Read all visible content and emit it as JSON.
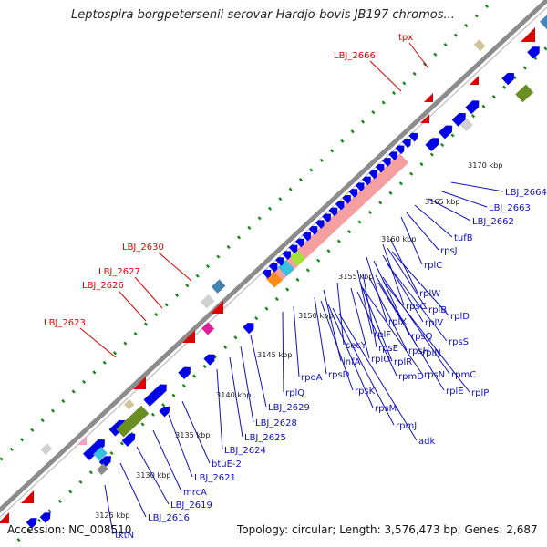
{
  "title": "Leptospira borgpetersenii serovar Hardjo-bovis JB197 chromos...",
  "footer": {
    "accession": "Accession: NC_008510",
    "summary": "Topology: circular; Length: 3,576,473 bp; Genes: 2,687"
  },
  "colors": {
    "backbone": "#8c8c8c",
    "cds": "#0000e6",
    "rna_pink": "#f4a0a0",
    "tick_green": "#1a8a1a",
    "label_red": "#e00000",
    "label_blue": "#1010c0",
    "scale_text": "#222222"
  },
  "scale_labels": [
    {
      "id": "s3125",
      "text": "3125 kbp"
    },
    {
      "id": "s3130",
      "text": "3130 kbp"
    },
    {
      "id": "s3135",
      "text": "3135 kbp"
    },
    {
      "id": "s3140",
      "text": "3140 kbp"
    },
    {
      "id": "s3145",
      "text": "3145 kbp"
    },
    {
      "id": "s3150",
      "text": "3150 kbp"
    },
    {
      "id": "s3155",
      "text": "3155 kbp"
    },
    {
      "id": "s3160",
      "text": "3160 kbp"
    },
    {
      "id": "s3165",
      "text": "3165 kbp"
    },
    {
      "id": "s3170",
      "text": "3170 kbp"
    }
  ],
  "red_labels": [
    {
      "id": "tpx",
      "text": "tpx"
    },
    {
      "id": "lbj2666",
      "text": "LBJ_2666"
    },
    {
      "id": "lbj2630",
      "text": "LBJ_2630"
    },
    {
      "id": "lbj2627",
      "text": "LBJ_2627"
    },
    {
      "id": "lbj2626",
      "text": "LBJ_2626"
    },
    {
      "id": "lbj2623",
      "text": "LBJ_2623"
    }
  ],
  "blue_labels": [
    {
      "id": "lbj2664",
      "text": "LBJ_2664"
    },
    {
      "id": "lbj2663",
      "text": "LBJ_2663"
    },
    {
      "id": "lbj2662",
      "text": "LBJ_2662"
    },
    {
      "id": "tufb",
      "text": "tufB"
    },
    {
      "id": "rpsj",
      "text": "rpsJ"
    },
    {
      "id": "rplc",
      "text": "rplC"
    },
    {
      "id": "rplw",
      "text": "rplW"
    },
    {
      "id": "rpsc",
      "text": "rpsC"
    },
    {
      "id": "rplb",
      "text": "rplB"
    },
    {
      "id": "rpld",
      "text": "rplD"
    },
    {
      "id": "rplx",
      "text": "rplX"
    },
    {
      "id": "rplv",
      "text": "rplV"
    },
    {
      "id": "rpsq",
      "text": "rpsQ"
    },
    {
      "id": "rpss",
      "text": "rpsS"
    },
    {
      "id": "rplf",
      "text": "rplF"
    },
    {
      "id": "rpse",
      "text": "rpsE"
    },
    {
      "id": "rpsh",
      "text": "rpsH"
    },
    {
      "id": "rpln",
      "text": "rplN"
    },
    {
      "id": "secy",
      "text": "secY"
    },
    {
      "id": "rplr",
      "text": "rplR"
    },
    {
      "id": "rplo",
      "text": "rplO"
    },
    {
      "id": "rpmc",
      "text": "rpmC"
    },
    {
      "id": "infa",
      "text": "infA"
    },
    {
      "id": "rpmd",
      "text": "rpmD"
    },
    {
      "id": "rpsn",
      "text": "rpsN"
    },
    {
      "id": "rple",
      "text": "rplE"
    },
    {
      "id": "rplp",
      "text": "rplP"
    },
    {
      "id": "rpoa",
      "text": "rpoA"
    },
    {
      "id": "rpsd",
      "text": "rpsD"
    },
    {
      "id": "rplq",
      "text": "rplQ"
    },
    {
      "id": "rpsk",
      "text": "rpsK"
    },
    {
      "id": "lbj2629",
      "text": "LBJ_2629"
    },
    {
      "id": "rpsm",
      "text": "rpsM"
    },
    {
      "id": "lbj2628",
      "text": "LBJ_2628"
    },
    {
      "id": "rpmj",
      "text": "rpmJ"
    },
    {
      "id": "lbj2625",
      "text": "LBJ_2625"
    },
    {
      "id": "adk",
      "text": "adk"
    },
    {
      "id": "lbj2624",
      "text": "LBJ_2624"
    },
    {
      "id": "btue2",
      "text": "btuE-2"
    },
    {
      "id": "lbj2621",
      "text": "LBJ_2621"
    },
    {
      "id": "mrca",
      "text": "mrcA"
    },
    {
      "id": "lbj2619",
      "text": "LBJ_2619"
    },
    {
      "id": "lbj2616",
      "text": "LBJ_2616"
    },
    {
      "id": "tktn",
      "text": "tktN"
    }
  ]
}
